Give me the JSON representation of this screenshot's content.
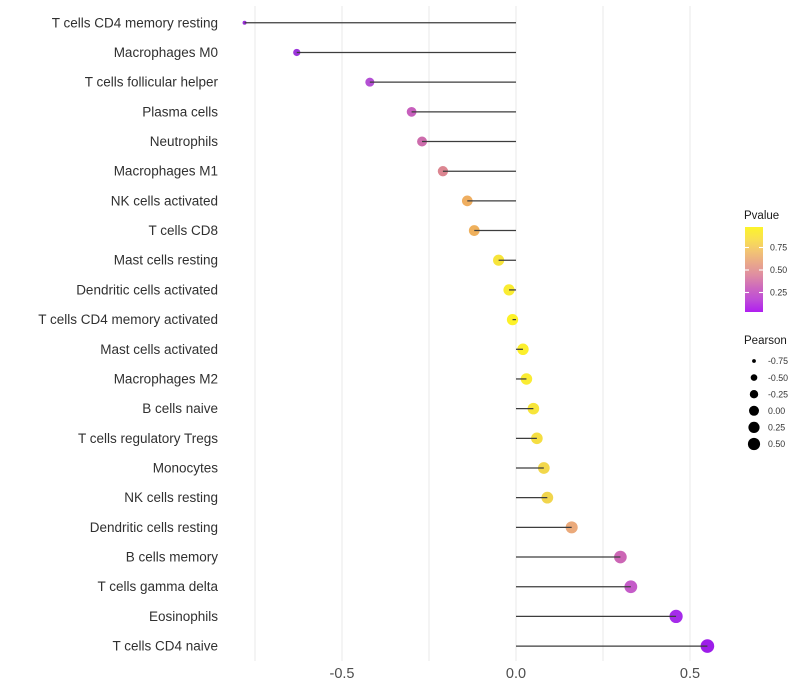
{
  "chart_data": {
    "type": "lollipop",
    "title": "",
    "xlabel": "",
    "ylabel": "",
    "orientation": "horizontal",
    "x_ticks": [
      "-0.5",
      "0.0",
      "0.5"
    ],
    "x_tick_values": [
      -0.5,
      0.0,
      0.5
    ],
    "x_grid_values": [
      -0.75,
      -0.5,
      -0.25,
      0.0,
      0.25,
      0.5
    ],
    "xlim": [
      -0.845,
      0.62
    ],
    "grid": "vertical-only",
    "stem_color": "#3d3d3d",
    "axis_text_color": "#4d4d4d",
    "label_text_color": "#303030",
    "grid_color": "#e9e9e9",
    "size_scale": {
      "domain": [
        -0.78,
        0.55
      ],
      "radius_range": [
        2.0,
        6.8
      ]
    },
    "points": [
      {
        "label": "T cells CD4 memory resting",
        "pearson": -0.78,
        "color": "#9a2fd9"
      },
      {
        "label": "Macrophages M0",
        "pearson": -0.63,
        "color": "#9c35db"
      },
      {
        "label": "T cells follicular helper",
        "pearson": -0.42,
        "color": "#b450d4"
      },
      {
        "label": "Plasma cells",
        "pearson": -0.3,
        "color": "#c75fbd"
      },
      {
        "label": "Neutrophils",
        "pearson": -0.27,
        "color": "#cd6cac"
      },
      {
        "label": "Macrophages M1",
        "pearson": -0.21,
        "color": "#dc8691"
      },
      {
        "label": "NK cells activated",
        "pearson": -0.14,
        "color": "#efae60"
      },
      {
        "label": "T cells CD8",
        "pearson": -0.12,
        "color": "#efb05c"
      },
      {
        "label": "Mast cells resting",
        "pearson": -0.05,
        "color": "#f7e43a"
      },
      {
        "label": "Dendritic cells activated",
        "pearson": -0.02,
        "color": "#faec31"
      },
      {
        "label": "T cells CD4 memory activated",
        "pearson": -0.01,
        "color": "#fdf228"
      },
      {
        "label": "Mast cells activated",
        "pearson": 0.02,
        "color": "#fcef2c"
      },
      {
        "label": "Macrophages M2",
        "pearson": 0.03,
        "color": "#faec33"
      },
      {
        "label": "B cells naive",
        "pearson": 0.05,
        "color": "#f7e53a"
      },
      {
        "label": "T cells regulatory  Tregs",
        "pearson": 0.06,
        "color": "#f5de42"
      },
      {
        "label": "Monocytes",
        "pearson": 0.08,
        "color": "#f2d74b"
      },
      {
        "label": "NK cells resting",
        "pearson": 0.09,
        "color": "#f1d54d"
      },
      {
        "label": "Dendritic cells resting",
        "pearson": 0.16,
        "color": "#ebaa7b"
      },
      {
        "label": "B cells memory",
        "pearson": 0.3,
        "color": "#cc66b5"
      },
      {
        "label": "T cells gamma delta",
        "pearson": 0.33,
        "color": "#c55cc9"
      },
      {
        "label": "Eosinophils",
        "pearson": 0.46,
        "color": "#a52bea"
      },
      {
        "label": "T cells CD4 naive",
        "pearson": 0.55,
        "color": "#9d1de9"
      }
    ],
    "legend": {
      "pvalue": {
        "title": "Pvalue",
        "tick_labels": [
          "0.75",
          "0.50",
          "0.25"
        ],
        "gradient_stops_top_to_bottom": [
          "#fcf42a",
          "#f9e052",
          "#f2c473",
          "#e9a78b",
          "#de8ca3",
          "#cd68be",
          "#be4cd8",
          "#b01ef0"
        ]
      },
      "pearson": {
        "title": "Pearson",
        "labels": [
          "-0.75",
          "-0.50",
          "-0.25",
          "0.00",
          "0.25",
          "0.50"
        ],
        "values": [
          -0.75,
          -0.5,
          -0.25,
          0.0,
          0.25,
          0.5
        ],
        "dot_color": "#000000"
      },
      "title_color": "#1a1a1a",
      "label_color": "#333333"
    }
  }
}
